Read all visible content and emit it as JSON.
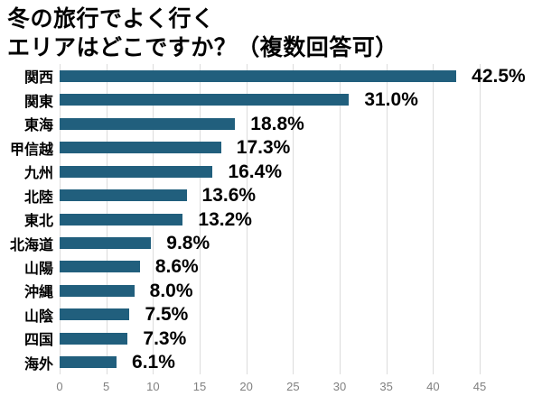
{
  "title": {
    "line1": "冬の旅行でよく行く",
    "line2": "エリアはどこですか？（複数回答可）"
  },
  "chart_data": {
    "type": "bar",
    "orientation": "horizontal",
    "title": "冬の旅行でよく行くエリアはどこですか？（複数回答可）",
    "categories": [
      "関西",
      "関東",
      "東海",
      "甲信越",
      "九州",
      "北陸",
      "東北",
      "北海道",
      "山陽",
      "沖縄",
      "山陰",
      "四国",
      "海外"
    ],
    "values": [
      42.5,
      31.0,
      18.8,
      17.3,
      16.4,
      13.6,
      13.2,
      9.8,
      8.6,
      8.0,
      7.5,
      7.3,
      6.1
    ],
    "value_labels": [
      "42.5%",
      "31.0%",
      "18.8%",
      "17.3%",
      "16.4%",
      "13.6%",
      "13.2%",
      "9.8%",
      "8.6%",
      "8.0%",
      "7.5%",
      "7.3%",
      "6.1%"
    ],
    "xlabel": "",
    "ylabel": "",
    "xlim": [
      0,
      45
    ],
    "x_ticks": [
      0,
      5,
      10,
      15,
      20,
      25,
      30,
      35,
      40,
      45
    ],
    "grid": true,
    "legend": "none",
    "bar_color": "#215F7D",
    "gridline_color": "#DCDCDC",
    "tick_color": "#808080"
  }
}
